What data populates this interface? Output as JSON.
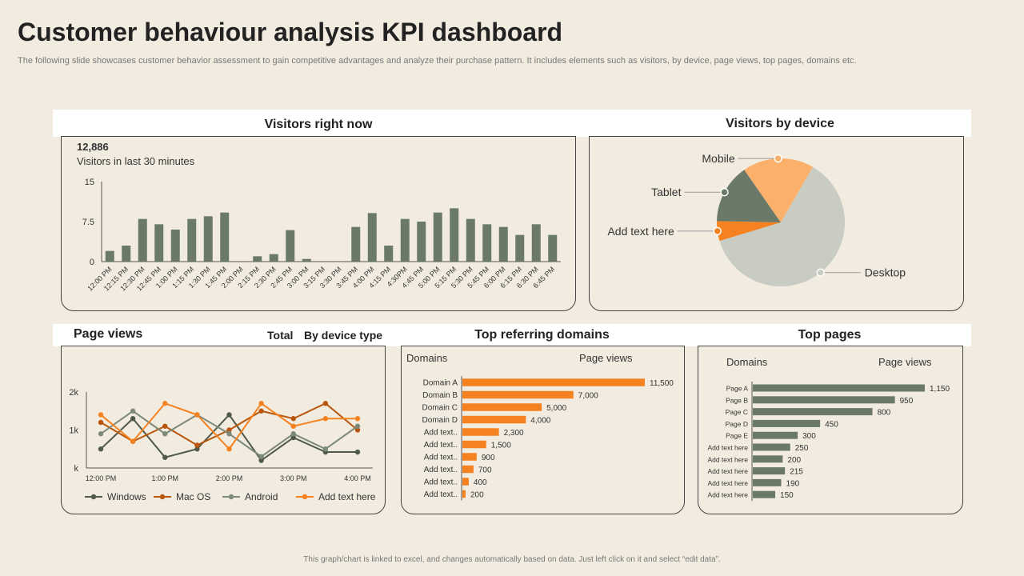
{
  "page": {
    "title": "Customer behaviour analysis KPI dashboard",
    "subtitle": "The following slide showcases customer behavior assessment to gain competitive advantages and analyze their purchase pattern. It includes elements such as visitors, by device, page views, top pages, domains etc.",
    "footer": "This graph/chart is linked to excel, and changes automatically based on data. Just left click on it and select “edit data”."
  },
  "visitors_now": {
    "header": "Visitors right now",
    "count": "12,886",
    "caption": "Visitors in last 30 minutes"
  },
  "visitors_device": {
    "header": "Visitors by device"
  },
  "page_views": {
    "header": "Page views",
    "tab_total": "Total",
    "tab_device": "By device type"
  },
  "referring": {
    "header": "Top referring domains",
    "col_domains": "Domains",
    "col_views": "Page views"
  },
  "top_pages": {
    "header": "Top pages",
    "col_domains": "Domains",
    "col_views": "Page views"
  },
  "colors": {
    "green": "#6b7a68",
    "orange": "#f58220",
    "light_orange": "#fbb06c",
    "brown": "#b8560e",
    "grey": "#c8ccc3",
    "gray_green": "#7d8a78"
  },
  "chart_data": [
    {
      "type": "bar",
      "categories": [
        "12:00 PM",
        "12:15 PM",
        "12:30 PM",
        "12:45 PM",
        "1:00 PM",
        "1:15 PM",
        "1:30 PM",
        "1:45 PM",
        "2:00 PM",
        "2:15 PM",
        "2:30 PM",
        "2:45 PM",
        "3:00 PM",
        "3:15 PM",
        "3:30 PM",
        "3:45 PM",
        "4:00 PM",
        "4:15 PM",
        "4:30PM",
        "4:45 PM",
        "5:00 PM",
        "5:15 PM",
        "5:30 PM",
        "5:45 PM",
        "6:00 PM",
        "6:15 PM",
        "6:30 PM",
        "6:45 PM"
      ],
      "values": [
        2,
        3,
        8,
        7,
        6,
        8,
        8.5,
        9.2,
        0,
        1,
        1.4,
        5.9,
        0.5,
        0,
        0,
        6.5,
        9.1,
        3,
        8,
        7.5,
        9.2,
        10,
        8,
        7,
        6.5,
        5,
        7,
        5
      ],
      "yticks": [
        "0",
        "7.5",
        "15"
      ],
      "ylim": [
        0,
        15
      ]
    },
    {
      "type": "pie",
      "labels": [
        "Desktop",
        "Add text here",
        "Tablet",
        "Mobile"
      ],
      "values": [
        62,
        5,
        15,
        18
      ],
      "colors": [
        "#c8ccc3",
        "#f58220",
        "#6b7a68",
        "#fbb06c"
      ]
    },
    {
      "type": "line",
      "x": [
        "12:00 PM",
        "",
        "1:00 PM",
        "",
        "2:00 PM",
        "",
        "3:00 PM",
        "",
        "4:00 PM"
      ],
      "xticks": [
        "12:00 PM",
        "1:00 PM",
        "2:00 PM",
        "3:00 PM",
        "4:00 PM"
      ],
      "yticks": [
        "k",
        "1k",
        "2k"
      ],
      "ylim": [
        0,
        2000
      ],
      "series": [
        {
          "name": "Windows",
          "color": "#4f5a4c",
          "values": [
            500,
            1300,
            280,
            500,
            1400,
            200,
            800,
            420,
            420
          ]
        },
        {
          "name": "Mac OS",
          "color": "#b8560e",
          "values": [
            1200,
            700,
            1100,
            600,
            1000,
            1500,
            1300,
            1700,
            1000
          ]
        },
        {
          "name": "Android",
          "color": "#7d8a78",
          "values": [
            900,
            1500,
            900,
            1400,
            900,
            300,
            900,
            500,
            1100
          ]
        },
        {
          "name": "Add text here",
          "color": "#f58220",
          "values": [
            1400,
            700,
            1700,
            1400,
            500,
            1700,
            1100,
            1300,
            1300
          ]
        }
      ]
    },
    {
      "type": "bar",
      "orientation": "horizontal",
      "categories": [
        "Domain A",
        "Domain B",
        "Domain C",
        "Domain D",
        "Add text..",
        "Add text..",
        "Add text..",
        "Add text..",
        "Add text..",
        "Add text.."
      ],
      "values": [
        11500,
        7000,
        5000,
        4000,
        2300,
        1500,
        900,
        700,
        400,
        200
      ],
      "value_labels": [
        "11,500",
        "7,000",
        "5,000",
        "4,000",
        "2,300",
        "1,500",
        "900",
        "700",
        "400",
        "200"
      ]
    },
    {
      "type": "bar",
      "orientation": "horizontal",
      "categories": [
        "Page A",
        "Page B",
        "Page C",
        "Page D",
        "Page E",
        "Add text here",
        "Add text here",
        "Add text here",
        "Add text here",
        "Add text here"
      ],
      "values": [
        1150,
        950,
        800,
        450,
        300,
        250,
        200,
        215,
        190,
        150
      ],
      "value_labels": [
        "1,150",
        "950",
        "800",
        "450",
        "300",
        "250",
        "200",
        "215",
        "190",
        "150"
      ]
    }
  ]
}
